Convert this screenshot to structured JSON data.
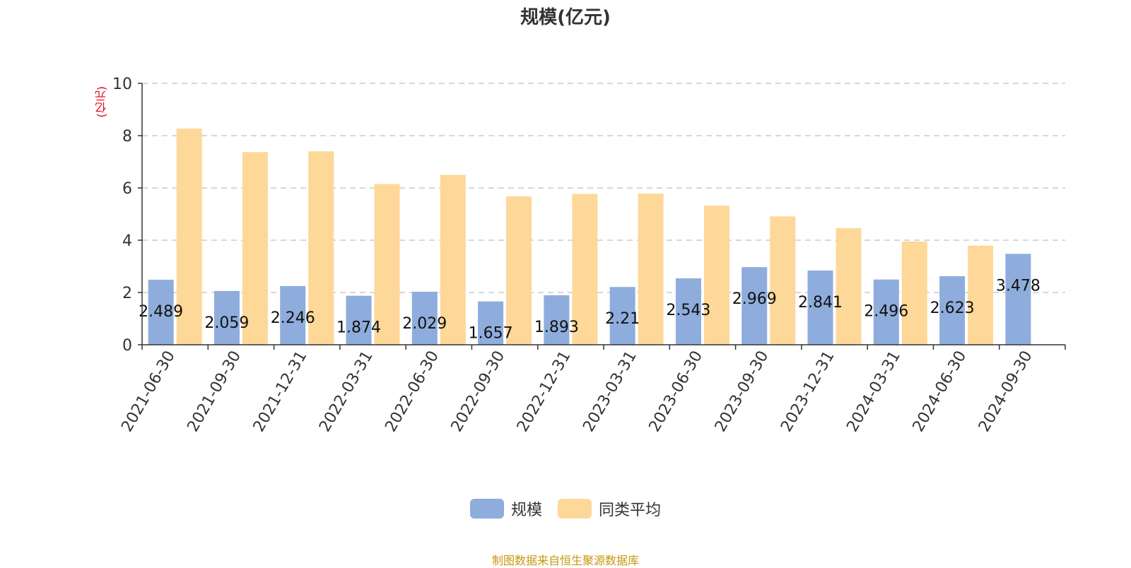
{
  "chart_data": {
    "type": "bar",
    "title": "规模(亿元)",
    "ylabel": "(亿元)",
    "xlabel": "",
    "ylim": [
      0,
      10
    ],
    "yticks": [
      0,
      2,
      4,
      6,
      8,
      10
    ],
    "grid": true,
    "legend_position": "bottom",
    "categories": [
      "2021-06-30",
      "2021-09-30",
      "2021-12-31",
      "2022-03-31",
      "2022-06-30",
      "2022-09-30",
      "2022-12-31",
      "2023-03-31",
      "2023-06-30",
      "2023-09-30",
      "2023-12-31",
      "2024-03-31",
      "2024-06-30",
      "2024-09-30"
    ],
    "series": [
      {
        "name": "规模",
        "color": "#8eaddd",
        "values": [
          2.489,
          2.059,
          2.246,
          1.874,
          2.029,
          1.657,
          1.893,
          2.21,
          2.543,
          2.969,
          2.841,
          2.496,
          2.623,
          3.478
        ],
        "data_labels": [
          "2.489",
          "2.059",
          "2.246",
          "1.874",
          "2.029",
          "1.657",
          "1.893",
          "2.21",
          "2.543",
          "2.969",
          "2.841",
          "2.496",
          "2.623",
          "3.478"
        ]
      },
      {
        "name": "同类平均",
        "color": "#fdd899",
        "values": [
          8.27,
          7.37,
          7.4,
          6.15,
          6.5,
          5.68,
          5.77,
          5.78,
          5.32,
          4.91,
          4.46,
          3.95,
          3.79,
          null
        ]
      }
    ],
    "source": "制图数据来自恒生聚源数据库"
  }
}
